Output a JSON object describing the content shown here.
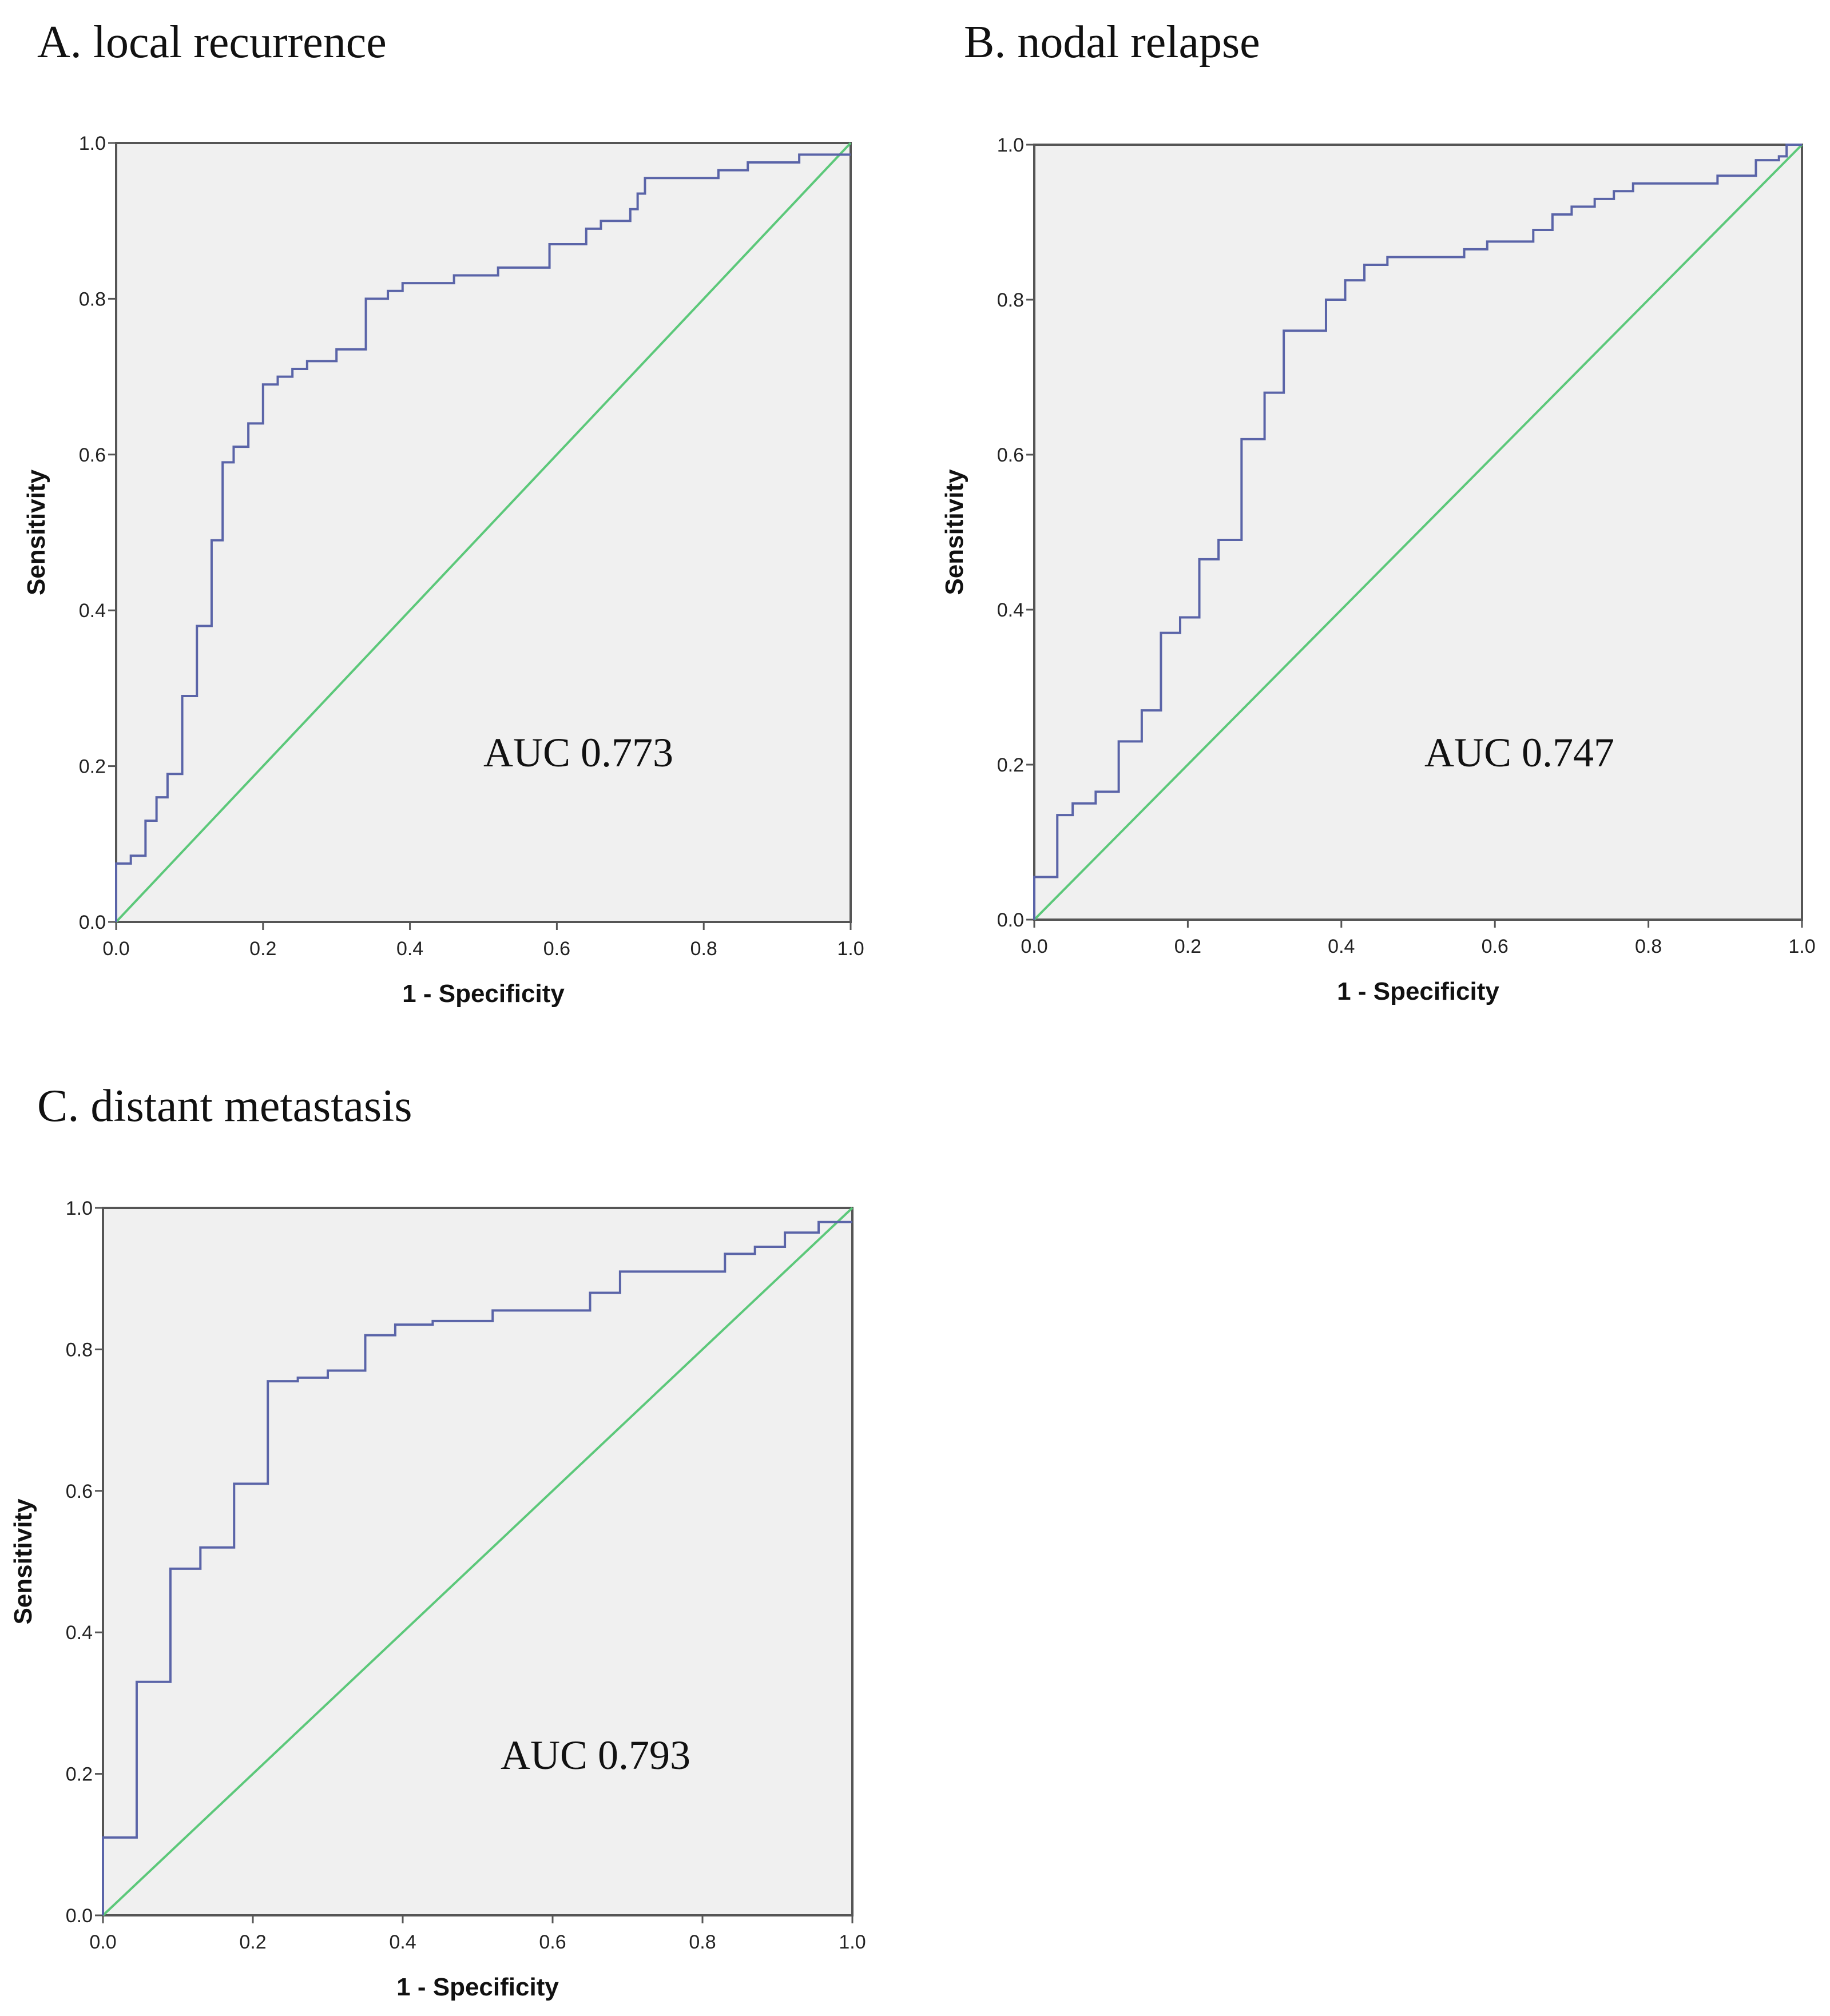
{
  "colors": {
    "roc_curve": "#5a64a8",
    "reference_line": "#5cc87a",
    "plot_background": "#f0f0f0",
    "frame": "#555555"
  },
  "chart_data": [
    {
      "type": "line",
      "title": "A. local recurrence",
      "xlabel": "1 - Specificity",
      "ylabel": "Sensitivity",
      "xlim": [
        0,
        1
      ],
      "ylim": [
        0,
        1
      ],
      "xticks": [
        "0.0",
        "0.2",
        "0.4",
        "0.6",
        "0.8",
        "1.0"
      ],
      "yticks": [
        "0.0",
        "0.2",
        "0.4",
        "0.6",
        "0.8",
        "1.0"
      ],
      "annotation": "AUC  0.773",
      "grid": false,
      "series": [
        {
          "x": [
            0,
            0,
            0.02,
            0.02,
            0.04,
            0.04,
            0.055,
            0.055,
            0.07,
            0.07,
            0.09,
            0.09,
            0.11,
            0.11,
            0.13,
            0.13,
            0.145,
            0.145,
            0.16,
            0.16,
            0.18,
            0.18,
            0.2,
            0.2,
            0.22,
            0.22,
            0.24,
            0.24,
            0.26,
            0.26,
            0.3,
            0.3,
            0.34,
            0.34,
            0.37,
            0.37,
            0.39,
            0.39,
            0.46,
            0.46,
            0.52,
            0.52,
            0.59,
            0.59,
            0.64,
            0.64,
            0.66,
            0.66,
            0.7,
            0.7,
            0.71,
            0.71,
            0.72,
            0.72,
            0.82,
            0.82,
            0.86,
            0.86,
            0.93,
            0.93,
            1.0
          ],
          "y": [
            0,
            0.075,
            0.075,
            0.085,
            0.085,
            0.13,
            0.13,
            0.16,
            0.16,
            0.19,
            0.19,
            0.29,
            0.29,
            0.38,
            0.38,
            0.49,
            0.49,
            0.59,
            0.59,
            0.61,
            0.61,
            0.64,
            0.64,
            0.69,
            0.69,
            0.7,
            0.7,
            0.71,
            0.71,
            0.72,
            0.72,
            0.735,
            0.735,
            0.8,
            0.8,
            0.81,
            0.81,
            0.82,
            0.82,
            0.83,
            0.83,
            0.84,
            0.84,
            0.87,
            0.87,
            0.89,
            0.89,
            0.9,
            0.9,
            0.915,
            0.915,
            0.935,
            0.935,
            0.955,
            0.955,
            0.965,
            0.965,
            0.975,
            0.975,
            0.985,
            0.985
          ]
        },
        {
          "x": [
            0,
            1
          ],
          "y": [
            0,
            1
          ]
        }
      ]
    },
    {
      "type": "line",
      "title": "B. nodal relapse",
      "xlabel": "1 - Specificity",
      "ylabel": "Sensitivity",
      "xlim": [
        0,
        1
      ],
      "ylim": [
        0,
        1
      ],
      "xticks": [
        "0.0",
        "0.2",
        "0.4",
        "0.6",
        "0.8",
        "1.0"
      ],
      "yticks": [
        "0.0",
        "0.2",
        "0.4",
        "0.6",
        "0.8",
        "1.0"
      ],
      "annotation": "AUC  0.747",
      "grid": false,
      "series": [
        {
          "x": [
            0,
            0,
            0.03,
            0.03,
            0.05,
            0.05,
            0.08,
            0.08,
            0.11,
            0.11,
            0.14,
            0.14,
            0.165,
            0.165,
            0.19,
            0.19,
            0.215,
            0.215,
            0.24,
            0.24,
            0.27,
            0.27,
            0.3,
            0.3,
            0.325,
            0.325,
            0.38,
            0.38,
            0.405,
            0.405,
            0.43,
            0.43,
            0.46,
            0.46,
            0.56,
            0.56,
            0.59,
            0.59,
            0.65,
            0.65,
            0.675,
            0.675,
            0.7,
            0.7,
            0.73,
            0.73,
            0.755,
            0.755,
            0.78,
            0.78,
            0.89,
            0.89,
            0.94,
            0.94,
            0.97,
            0.97,
            0.98,
            0.98,
            1.0
          ],
          "y": [
            0,
            0.055,
            0.055,
            0.135,
            0.135,
            0.15,
            0.15,
            0.165,
            0.165,
            0.23,
            0.23,
            0.27,
            0.27,
            0.37,
            0.37,
            0.39,
            0.39,
            0.465,
            0.465,
            0.49,
            0.49,
            0.62,
            0.62,
            0.68,
            0.68,
            0.76,
            0.76,
            0.8,
            0.8,
            0.825,
            0.825,
            0.845,
            0.845,
            0.855,
            0.855,
            0.865,
            0.865,
            0.875,
            0.875,
            0.89,
            0.89,
            0.91,
            0.91,
            0.92,
            0.92,
            0.93,
            0.93,
            0.94,
            0.94,
            0.95,
            0.95,
            0.96,
            0.96,
            0.98,
            0.98,
            0.985,
            0.985,
            1.0,
            1.0
          ]
        },
        {
          "x": [
            0,
            1
          ],
          "y": [
            0,
            1
          ]
        }
      ]
    },
    {
      "type": "line",
      "title": "C. distant metastasis",
      "xlabel": "1 - Specificity",
      "ylabel": "Sensitivity",
      "xlim": [
        0,
        1
      ],
      "ylim": [
        0,
        1
      ],
      "xticks": [
        "0.0",
        "0.2",
        "0.4",
        "0.6",
        "0.8",
        "1.0"
      ],
      "yticks": [
        "0.0",
        "0.2",
        "0.4",
        "0.6",
        "0.8",
        "1.0"
      ],
      "annotation": "AUC  0.793",
      "grid": false,
      "series": [
        {
          "x": [
            0,
            0,
            0.045,
            0.045,
            0.09,
            0.09,
            0.13,
            0.13,
            0.175,
            0.175,
            0.22,
            0.22,
            0.26,
            0.26,
            0.3,
            0.3,
            0.35,
            0.35,
            0.39,
            0.39,
            0.44,
            0.44,
            0.52,
            0.52,
            0.65,
            0.65,
            0.69,
            0.69,
            0.83,
            0.83,
            0.87,
            0.87,
            0.91,
            0.91,
            0.955,
            0.955,
            1.0
          ],
          "y": [
            0,
            0.11,
            0.11,
            0.33,
            0.33,
            0.49,
            0.49,
            0.52,
            0.52,
            0.61,
            0.61,
            0.755,
            0.755,
            0.76,
            0.76,
            0.77,
            0.77,
            0.82,
            0.82,
            0.835,
            0.835,
            0.84,
            0.84,
            0.855,
            0.855,
            0.88,
            0.88,
            0.91,
            0.91,
            0.935,
            0.935,
            0.945,
            0.945,
            0.965,
            0.965,
            0.98,
            0.98
          ]
        },
        {
          "x": [
            0,
            1
          ],
          "y": [
            0,
            1
          ]
        }
      ]
    }
  ]
}
